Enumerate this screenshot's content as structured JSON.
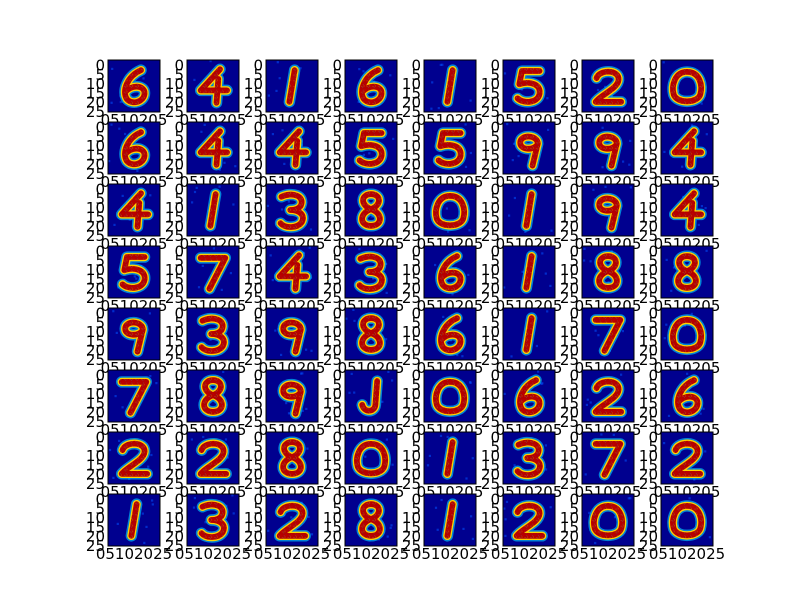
{
  "chart_data": {
    "type": "heatmap",
    "title": "",
    "layout": "8x8 grid of image subplots (imshow, jet colormap)",
    "image_size": [
      28,
      28
    ],
    "colormap": "jet",
    "value_range": [
      0,
      1
    ],
    "x_tick_labels": [
      "0",
      "5",
      "10",
      "15",
      "20",
      "25"
    ],
    "y_tick_labels": [
      "0",
      "5",
      "10",
      "15",
      "20",
      "25"
    ],
    "bottom_tick_text": "05102025",
    "overlap_tick_text": "0510205",
    "digits": [
      "6",
      "4",
      "1",
      "6",
      "1",
      "5",
      "2",
      "0",
      "6",
      "4",
      "4",
      "5",
      "5",
      "9",
      "9",
      "4",
      "4",
      "1",
      "3",
      "8",
      "0",
      "1",
      "9",
      "4",
      "5",
      "7",
      "4",
      "3",
      "6",
      "1",
      "8",
      "8",
      "9",
      "3",
      "9",
      "8",
      "6",
      "1",
      "7",
      "0",
      "7",
      "8",
      "9",
      "J",
      "0",
      "6",
      "2",
      "6",
      "2",
      "2",
      "8",
      "0",
      "1",
      "3",
      "7",
      "2",
      "1",
      "3",
      "2",
      "8",
      "1",
      "2",
      "0",
      "0"
    ],
    "colors": {
      "background": "#00008f",
      "stroke": "#b40000",
      "mid": "#ffd200",
      "edge": "#00c8ff"
    }
  }
}
